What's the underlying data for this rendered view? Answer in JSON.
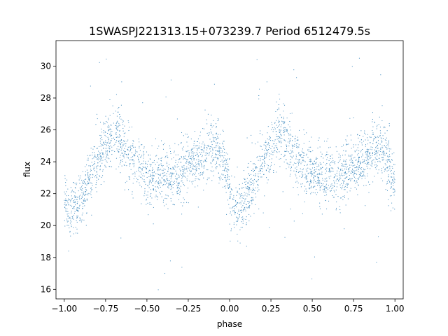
{
  "chart_data": {
    "type": "scatter",
    "title": "1SWASPJ221313.15+073239.7 Period 6512479.5s",
    "xlabel": "phase",
    "ylabel": "flux",
    "xlim": [
      -1.05,
      1.05
    ],
    "ylim": [
      15.4,
      31.6
    ],
    "x_ticks": [
      -1.0,
      -0.75,
      -0.5,
      -0.25,
      0.0,
      0.25,
      0.5,
      0.75,
      1.0
    ],
    "x_tick_labels": [
      "−1.00",
      "−0.75",
      "−0.50",
      "−0.25",
      "0.00",
      "0.25",
      "0.50",
      "0.75",
      "1.00"
    ],
    "y_ticks": [
      16,
      18,
      20,
      22,
      24,
      26,
      28,
      30
    ],
    "y_tick_labels": [
      "16",
      "18",
      "20",
      "22",
      "24",
      "26",
      "28",
      "30"
    ],
    "grid": false,
    "marker_color": "#1f77b4",
    "phase_range": [
      -1.0,
      1.0
    ],
    "trend": {
      "phase": [
        0.0,
        0.04,
        0.08,
        0.12,
        0.16,
        0.2,
        0.24,
        0.28,
        0.32,
        0.36,
        0.4,
        0.44,
        0.48,
        0.52,
        0.56,
        0.6,
        0.64,
        0.68,
        0.72,
        0.76,
        0.8,
        0.84,
        0.88,
        0.92,
        0.96,
        1.0
      ],
      "flux": [
        21.5,
        21.0,
        21.3,
        22.0,
        23.0,
        24.0,
        24.8,
        25.5,
        25.8,
        25.0,
        24.3,
        23.8,
        23.4,
        23.0,
        23.0,
        23.2,
        23.0,
        23.0,
        23.5,
        23.8,
        24.0,
        24.4,
        24.9,
        24.8,
        24.0,
        22.5
      ]
    },
    "spread_sigma": 0.9,
    "point_count": 3200
  }
}
